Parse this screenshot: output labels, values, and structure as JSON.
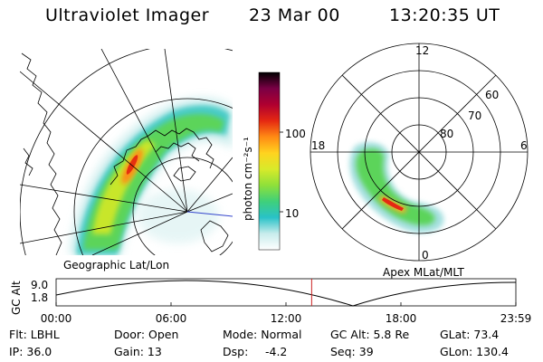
{
  "header": {
    "title": "Ultraviolet Imager",
    "date": "23 Mar 00",
    "time": "13:20:35 UT"
  },
  "colorbar": {
    "unit_label": "photon cm⁻²s⁻¹",
    "tick_100": "100",
    "tick_10": "10",
    "colors": [
      "#ffffff",
      "#c8ecec",
      "#29c2c8",
      "#3fd07a",
      "#8fe03a",
      "#d8ea2a",
      "#ffd31f",
      "#ff8a14",
      "#e52812",
      "#b00030",
      "#7a0045",
      "#000000"
    ]
  },
  "left_panel": {
    "caption": "Geographic Lat/Lon"
  },
  "right_panel": {
    "caption": "Apex MLat/MLT",
    "mlt_labels": {
      "top": "12",
      "left": "18",
      "right": "6",
      "bottom": "0"
    },
    "lat_labels": [
      "60",
      "70",
      "80"
    ]
  },
  "timeline": {
    "ylabel": "GC Alt",
    "y_ticks": [
      "9.0",
      "1.8"
    ],
    "x_ticks": [
      "00:00",
      "06:00",
      "12:00",
      "18:00",
      "23:59"
    ],
    "current_marker_hours": 13.34,
    "marker_color": "#cc2222"
  },
  "info": {
    "flt": "Flt: LBHL",
    "ip": "IP: 36.0",
    "door": "Door: Open",
    "gain": "Gain: 13",
    "mode": "Mode: Normal",
    "dsp_label": "Dsp:",
    "dsp_value": "-4.2",
    "gc_alt": "GC Alt: 5.8 Re",
    "seq": "Seq: 39",
    "glat": "GLat: 73.4",
    "glon": "GLon: 130.4"
  }
}
